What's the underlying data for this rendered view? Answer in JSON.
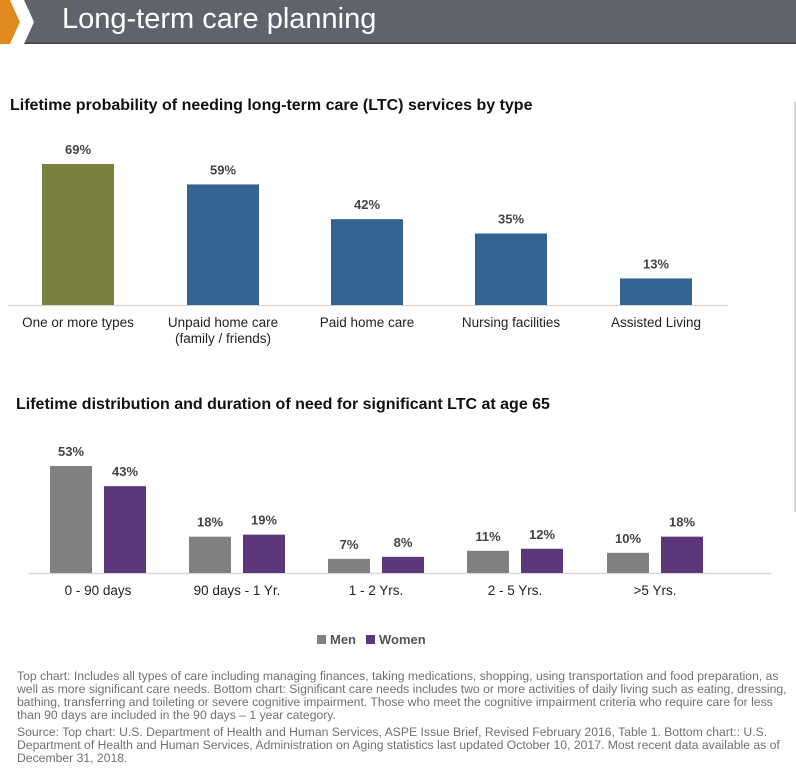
{
  "header": {
    "title": "Long-term care planning"
  },
  "colors": {
    "header_bg": "#60636b",
    "chevron": "#e08a1e",
    "olive": "#7a8040",
    "blue": "#336491",
    "men": "#808080",
    "women": "#5b3678"
  },
  "chart_data": [
    {
      "type": "bar",
      "title": "Lifetime probability of needing long-term care (LTC) services by type",
      "categories": [
        "One or more types",
        "Unpaid home care\n(family / friends)",
        "Paid home care",
        "Nursing facilities",
        "Assisted Living"
      ],
      "values": [
        69,
        59,
        42,
        35,
        13
      ],
      "data_labels": [
        "69%",
        "59%",
        "42%",
        "35%",
        "13%"
      ],
      "bar_colors": [
        "#7a8040",
        "#336491",
        "#336491",
        "#336491",
        "#336491"
      ],
      "xlabel": "",
      "ylabel": "",
      "ylim": [
        0,
        69
      ],
      "grid": false,
      "legend": "none"
    },
    {
      "type": "bar",
      "title": "Lifetime distribution and duration of need for significant LTC at age 65",
      "categories": [
        "0 - 90 days",
        "90 days - 1 Yr.",
        "1 - 2 Yrs.",
        "2 - 5 Yrs.",
        ">5 Yrs."
      ],
      "series": [
        {
          "name": "Men",
          "color": "#808080",
          "values": [
            53,
            18,
            7,
            11,
            10
          ],
          "data_labels": [
            "53%",
            "18%",
            "7%",
            "11%",
            "10%"
          ]
        },
        {
          "name": "Women",
          "color": "#5b3678",
          "values": [
            43,
            19,
            8,
            12,
            18
          ],
          "data_labels": [
            "43%",
            "19%",
            "8%",
            "12%",
            "18%"
          ]
        }
      ],
      "xlabel": "",
      "ylabel": "",
      "ylim": [
        0,
        53
      ],
      "grid": false,
      "legend": "bottom-center"
    }
  ],
  "legend": {
    "men": "Men",
    "women": "Women"
  },
  "notes": {
    "description": "Top chart: Includes all types of care including managing finances, taking medications, shopping, using transportation and food preparation, as well as more significant care needs. Bottom chart: Significant care needs includes two or more activities of daily living such as eating, dressing, bathing, transferring and toileting or severe cognitive impairment. Those who meet the cognitive impairment criteria who require care for less than 90 days are included in the 90 days – 1 year category.",
    "source": "Source: Top chart: U.S. Department of Health and Human Services, ASPE Issue Brief, Revised February 2016, Table  1. Bottom chart:: U.S. Department of Health and Human Services, Administration on Aging statistics last updated October 10, 2017. Most recent data available as of December 31, 2018."
  }
}
